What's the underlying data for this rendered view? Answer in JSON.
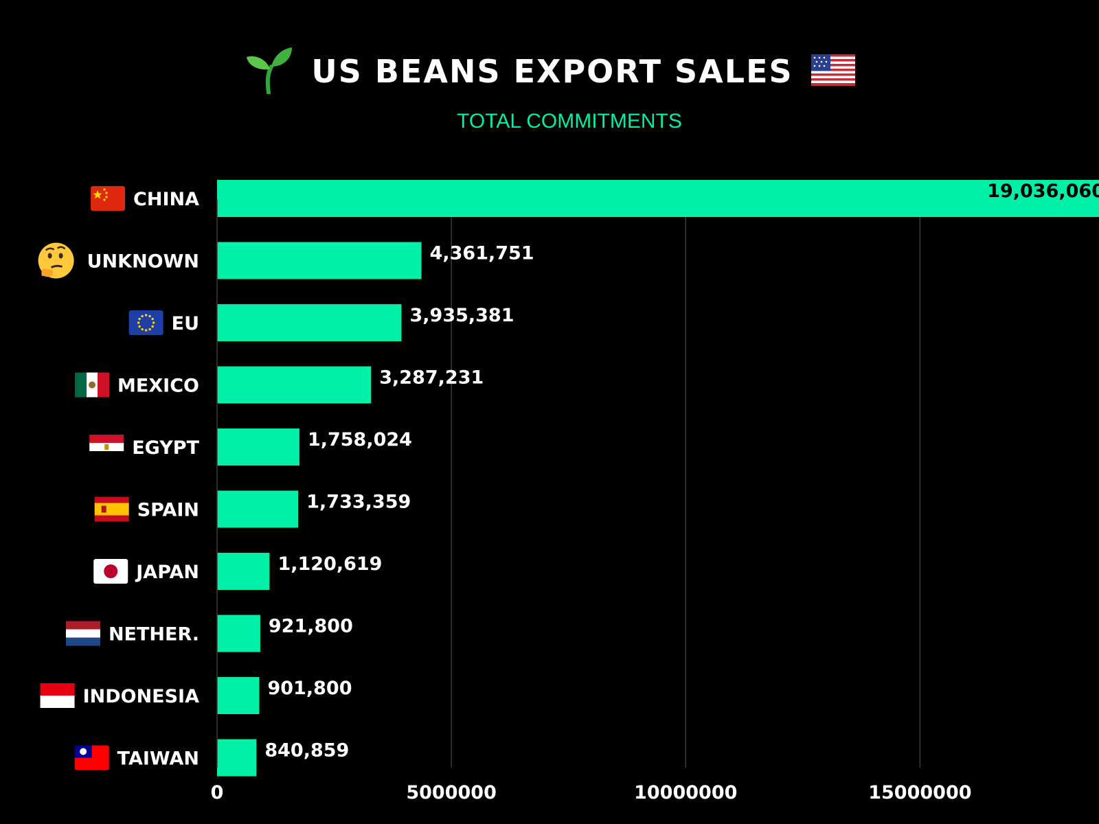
{
  "header": {
    "title": "US BEANS EXPORT SALES",
    "title_left_icon": "sprout-icon",
    "title_right_icon": "us-flag-icon",
    "subtitle": "TOTAL COMMITMENTS"
  },
  "colors": {
    "background": "#000000",
    "bar": "#00f0a8",
    "subtitle": "#00f0a8",
    "text": "#ffffff",
    "grid": "#3a3a3a"
  },
  "chart_data": {
    "type": "bar",
    "orientation": "horizontal",
    "title": "US BEANS EXPORT SALES",
    "subtitle": "TOTAL COMMITMENTS",
    "categories": [
      "CHINA",
      "UNKNOWN",
      "EU",
      "MEXICO",
      "EGYPT",
      "SPAIN",
      "JAPAN",
      "NETHER.",
      "INDONESIA",
      "TAIWAN"
    ],
    "category_icons": [
      "flag-china-icon",
      "thinking-face-icon",
      "flag-eu-icon",
      "flag-mexico-icon",
      "flag-egypt-icon",
      "flag-spain-icon",
      "flag-japan-icon",
      "flag-netherlands-icon",
      "flag-indonesia-icon",
      "flag-taiwan-icon"
    ],
    "values": [
      19036060,
      4361751,
      3935381,
      3287231,
      1758024,
      1733359,
      1120619,
      921800,
      901800,
      840859
    ],
    "value_labels": [
      "19,036,060",
      "4,361,751",
      "3,935,381",
      "3,287,231",
      "1,758,024",
      "1,733,359",
      "1,120,619",
      "921,800",
      "901,800",
      "840,859"
    ],
    "x_ticks": [
      0,
      5000000,
      10000000,
      15000000
    ],
    "x_tick_labels": [
      "0",
      "5000000",
      "10000000",
      "15000000"
    ],
    "xlim": [
      0,
      18820000
    ],
    "grid": "vertical",
    "legend": "none",
    "xlabel": "",
    "ylabel": ""
  }
}
